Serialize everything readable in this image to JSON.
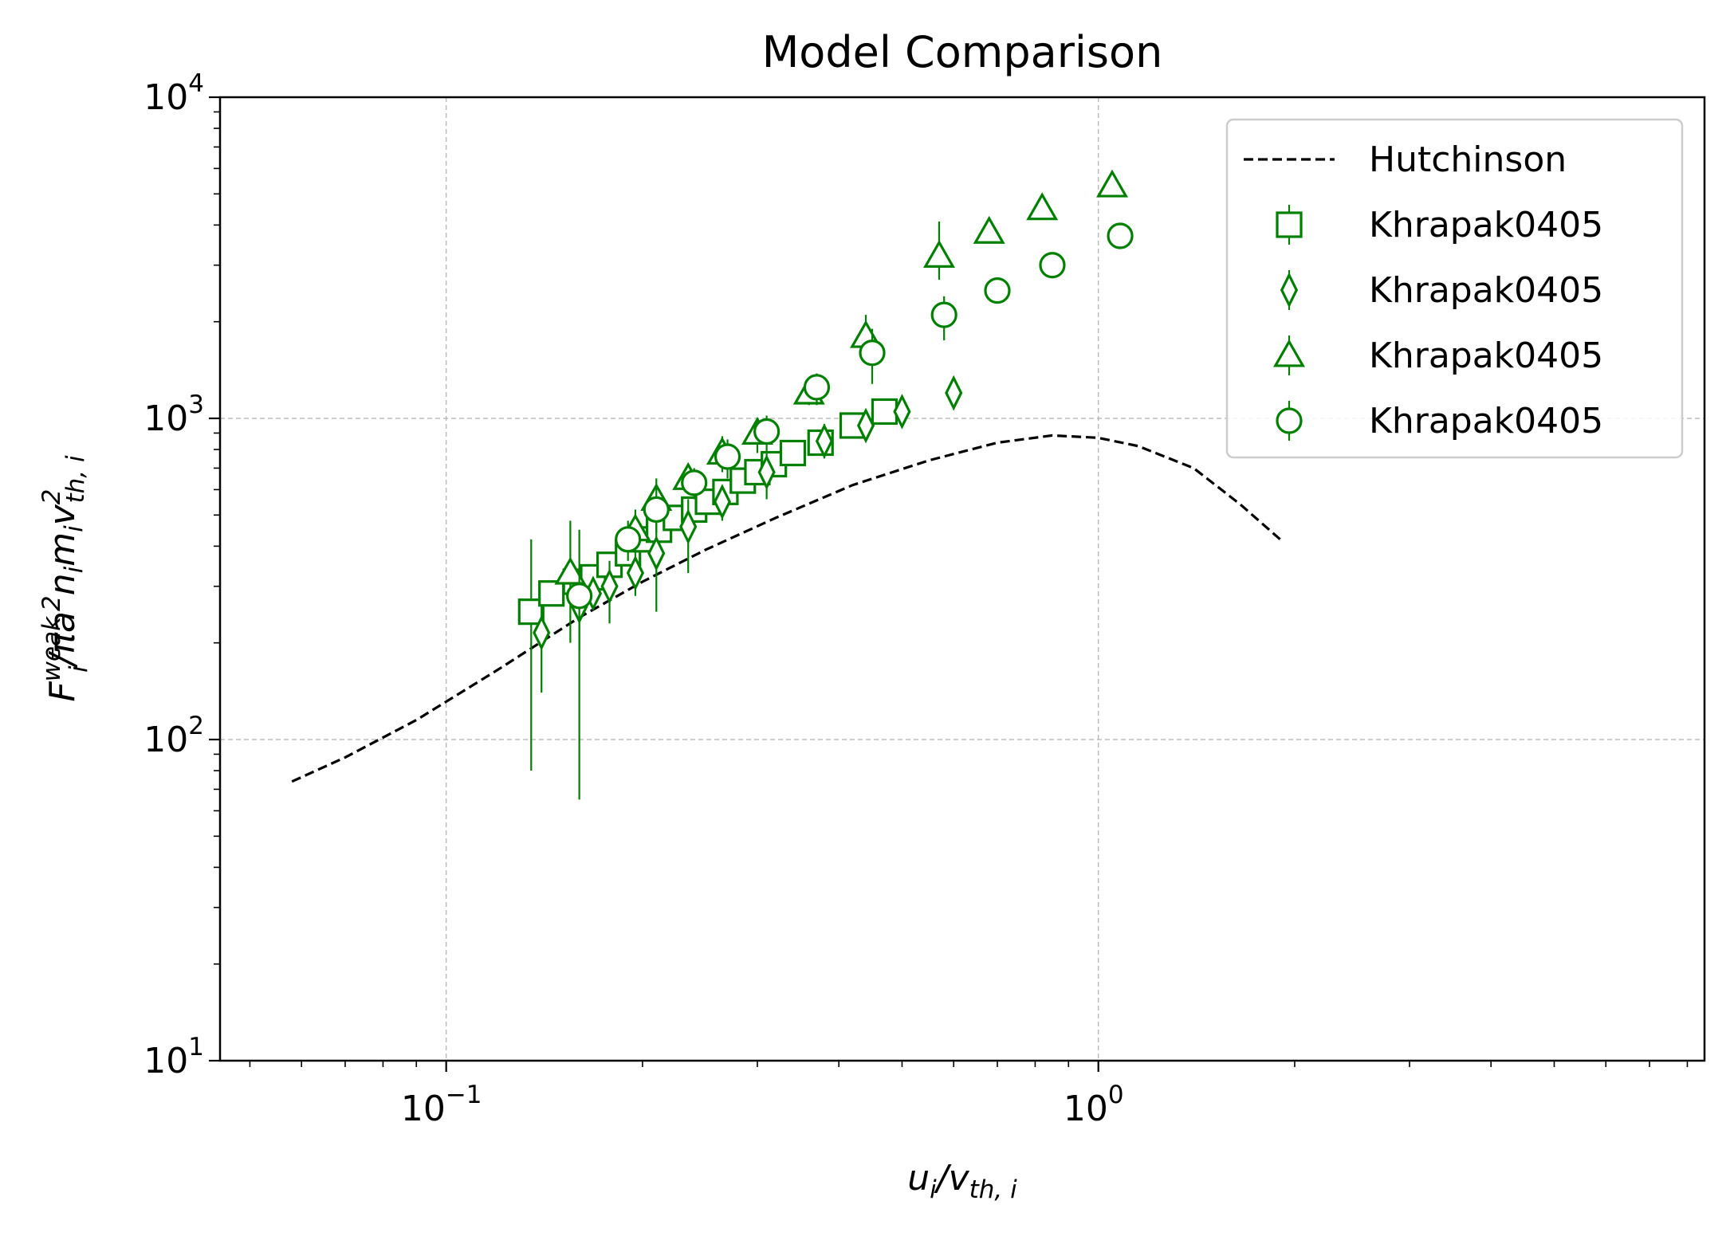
{
  "chart_data": {
    "type": "scatter",
    "title": "Model Comparison",
    "xlabel": "u_i/v_th,i",
    "ylabel": "F_i^weak/πa²n_i m_i v²_th,i",
    "x_scale": "log",
    "y_scale": "log",
    "xlim": [
      0.045,
      8.5
    ],
    "ylim": [
      10,
      10000
    ],
    "x_ticks": [
      {
        "value": 0.1,
        "base": "10",
        "exp": "−1"
      },
      {
        "value": 1,
        "base": "10",
        "exp": "0"
      }
    ],
    "y_ticks": [
      {
        "value": 10,
        "base": "10",
        "exp": "1"
      },
      {
        "value": 100,
        "base": "10",
        "exp": "2"
      },
      {
        "value": 1000,
        "base": "10",
        "exp": "3"
      },
      {
        "value": 10000,
        "base": "10",
        "exp": "4"
      }
    ],
    "grid": true,
    "legend_position": "top-right",
    "marker_color": "#008000",
    "line_color": "#000000",
    "series": [
      {
        "name": "Hutchinson",
        "kind": "line",
        "style": "dashed",
        "points": [
          [
            0.058,
            74
          ],
          [
            0.07,
            88
          ],
          [
            0.09,
            115
          ],
          [
            0.12,
            165
          ],
          [
            0.16,
            240
          ],
          [
            0.2,
            310
          ],
          [
            0.25,
            390
          ],
          [
            0.32,
            490
          ],
          [
            0.42,
            620
          ],
          [
            0.55,
            740
          ],
          [
            0.7,
            840
          ],
          [
            0.85,
            885
          ],
          [
            1.0,
            870
          ],
          [
            1.15,
            820
          ],
          [
            1.4,
            700
          ],
          [
            1.65,
            540
          ],
          [
            1.9,
            420
          ]
        ]
      },
      {
        "name": "Khrapak0405",
        "kind": "marker",
        "marker": "square",
        "points": [
          [
            0.135,
            250,
            80,
            420
          ],
          [
            0.145,
            285,
            null,
            null
          ],
          [
            0.158,
            310,
            null,
            null
          ],
          [
            0.168,
            320,
            null,
            null
          ],
          [
            0.178,
            350,
            null,
            null
          ],
          [
            0.19,
            380,
            null,
            null
          ],
          [
            0.2,
            420,
            null,
            null
          ],
          [
            0.212,
            450,
            null,
            null
          ],
          [
            0.225,
            490,
            null,
            null
          ],
          [
            0.24,
            520,
            null,
            null
          ],
          [
            0.252,
            550,
            null,
            null
          ],
          [
            0.268,
            590,
            null,
            null
          ],
          [
            0.285,
            640,
            null,
            null
          ],
          [
            0.3,
            680,
            null,
            null
          ],
          [
            0.318,
            720,
            null,
            null
          ],
          [
            0.34,
            780,
            null,
            null
          ],
          [
            0.375,
            840,
            null,
            null
          ],
          [
            0.42,
            950,
            null,
            null
          ],
          [
            0.47,
            1050,
            null,
            null
          ]
        ]
      },
      {
        "name": "Khrapak0405",
        "kind": "marker",
        "marker": "diamond",
        "points": [
          [
            0.14,
            215,
            140,
            260
          ],
          [
            0.16,
            260,
            190,
            330
          ],
          [
            0.168,
            285,
            null,
            null
          ],
          [
            0.178,
            300,
            230,
            360
          ],
          [
            0.195,
            330,
            280,
            380
          ],
          [
            0.21,
            380,
            250,
            500
          ],
          [
            0.235,
            460,
            330,
            560
          ],
          [
            0.265,
            550,
            480,
            620
          ],
          [
            0.31,
            680,
            560,
            800
          ],
          [
            0.38,
            850,
            750,
            960
          ],
          [
            0.44,
            950,
            880,
            1050
          ],
          [
            0.5,
            1050,
            980,
            1120
          ],
          [
            0.6,
            1200,
            null,
            null
          ]
        ]
      },
      {
        "name": "Khrapak0405",
        "kind": "marker",
        "marker": "triangle",
        "points": [
          [
            0.155,
            330,
            200,
            480
          ],
          [
            0.195,
            450,
            380,
            520
          ],
          [
            0.21,
            560,
            470,
            650
          ],
          [
            0.235,
            650,
            580,
            720
          ],
          [
            0.265,
            780,
            680,
            880
          ],
          [
            0.3,
            900,
            780,
            1000
          ],
          [
            0.36,
            1200,
            1100,
            1320
          ],
          [
            0.44,
            1800,
            1600,
            2100
          ],
          [
            0.57,
            3200,
            2700,
            4100
          ],
          [
            0.68,
            3800,
            null,
            null
          ],
          [
            0.82,
            4500,
            null,
            null
          ],
          [
            1.05,
            5300,
            null,
            null
          ]
        ]
      },
      {
        "name": "Khrapak0405",
        "kind": "marker",
        "marker": "circle",
        "points": [
          [
            0.16,
            280,
            65,
            450
          ],
          [
            0.19,
            420,
            360,
            480
          ],
          [
            0.21,
            520,
            440,
            620
          ],
          [
            0.24,
            630,
            560,
            700
          ],
          [
            0.27,
            760,
            650,
            860
          ],
          [
            0.31,
            910,
            800,
            1020
          ],
          [
            0.37,
            1250,
            1100,
            1380
          ],
          [
            0.45,
            1600,
            1280,
            1900
          ],
          [
            0.58,
            2100,
            1750,
            2400
          ],
          [
            0.7,
            2500,
            null,
            null
          ],
          [
            0.85,
            3000,
            null,
            null
          ],
          [
            1.08,
            3700,
            null,
            null
          ]
        ]
      }
    ]
  }
}
